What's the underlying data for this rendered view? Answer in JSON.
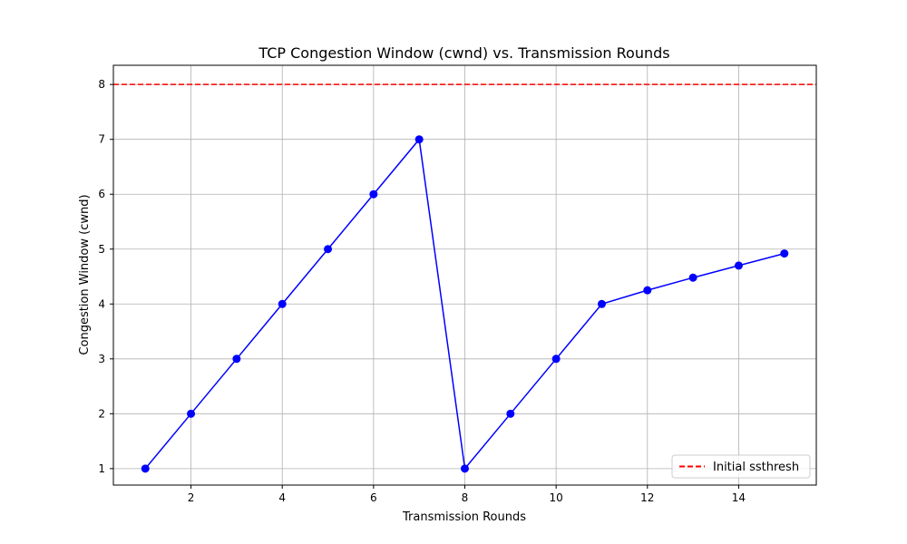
{
  "chart_data": {
    "type": "line",
    "title": "TCP Congestion Window (cwnd) vs. Transmission Rounds",
    "xlabel": "Transmission Rounds",
    "ylabel": "Congestion Window (cwnd)",
    "xlim": [
      0.3,
      15.7
    ],
    "ylim": [
      0.7,
      8.35
    ],
    "xticks": [
      2,
      4,
      6,
      8,
      10,
      12,
      14
    ],
    "yticks": [
      1,
      2,
      3,
      4,
      5,
      6,
      7,
      8
    ],
    "grid": true,
    "legend_position": "lower-right",
    "series": [
      {
        "color": "#0000ff",
        "marker": "circle",
        "x": [
          1,
          2,
          3,
          4,
          5,
          6,
          7,
          8,
          9,
          10,
          11,
          12,
          13,
          14,
          15
        ],
        "y": [
          1,
          2,
          3,
          4,
          5,
          6,
          7,
          1,
          2,
          3,
          4,
          4.25,
          4.48,
          4.7,
          4.92
        ]
      }
    ],
    "reference_lines": [
      {
        "name": "Initial ssthresh",
        "orientation": "horizontal",
        "value": 8,
        "color": "#ff0000",
        "style": "dashed"
      }
    ]
  }
}
